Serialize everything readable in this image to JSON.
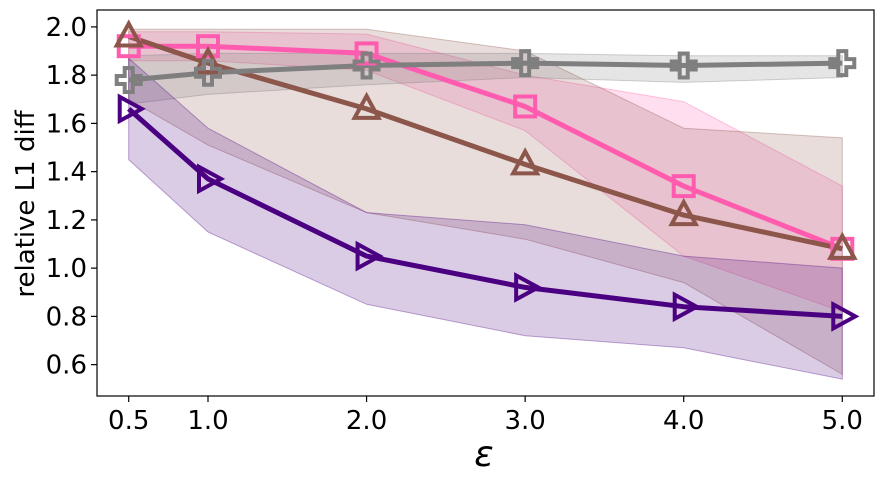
{
  "chart_data": {
    "type": "line",
    "title": "",
    "xlabel": "ε",
    "ylabel": "relative L1 diff",
    "x": [
      0.5,
      1.0,
      2.0,
      3.0,
      4.0,
      5.0
    ],
    "xtick_labels": [
      "0.5",
      "1.0",
      "2.0",
      "3.0",
      "4.0",
      "5.0"
    ],
    "yticks": [
      0.6,
      0.8,
      1.0,
      1.2,
      1.4,
      1.6,
      1.8,
      2.0
    ],
    "ytick_labels": [
      "0.6",
      "0.8",
      "1.0",
      "1.2",
      "1.4",
      "1.6",
      "1.8",
      "2.0"
    ],
    "xlim": [
      0.3,
      5.2
    ],
    "ylim": [
      0.47,
      2.07
    ],
    "grid": false,
    "legend": "none",
    "series": [
      {
        "name": "pink-square",
        "color": "#ff5cb0",
        "marker": "square",
        "values": [
          1.92,
          1.92,
          1.89,
          1.67,
          1.34,
          1.08
        ],
        "lower": [
          1.86,
          1.86,
          1.82,
          1.57,
          1.05,
          0.82
        ],
        "upper": [
          1.98,
          1.98,
          1.97,
          1.8,
          1.69,
          1.34
        ]
      },
      {
        "name": "brown-triangle-up",
        "color": "#8c564b",
        "marker": "triangle-up",
        "values": [
          1.96,
          1.85,
          1.66,
          1.43,
          1.22,
          1.08
        ],
        "lower": [
          1.7,
          1.51,
          1.23,
          1.12,
          0.94,
          0.56
        ],
        "upper": [
          1.99,
          1.99,
          1.99,
          1.9,
          1.58,
          1.54
        ]
      },
      {
        "name": "gray-plus",
        "color": "#7f7f7f",
        "marker": "plus",
        "values": [
          1.78,
          1.81,
          1.84,
          1.85,
          1.84,
          1.85
        ],
        "lower": [
          1.68,
          1.72,
          1.76,
          1.79,
          1.77,
          1.79
        ],
        "upper": [
          1.88,
          1.89,
          1.89,
          1.89,
          1.88,
          1.88
        ]
      },
      {
        "name": "purple-triangle-right",
        "color": "#4b0082",
        "marker": "triangle-right",
        "values": [
          1.66,
          1.37,
          1.05,
          0.92,
          0.84,
          0.8
        ],
        "lower": [
          1.45,
          1.15,
          0.85,
          0.72,
          0.67,
          0.54
        ],
        "upper": [
          1.87,
          1.58,
          1.23,
          1.18,
          1.05,
          1.0
        ]
      }
    ]
  }
}
